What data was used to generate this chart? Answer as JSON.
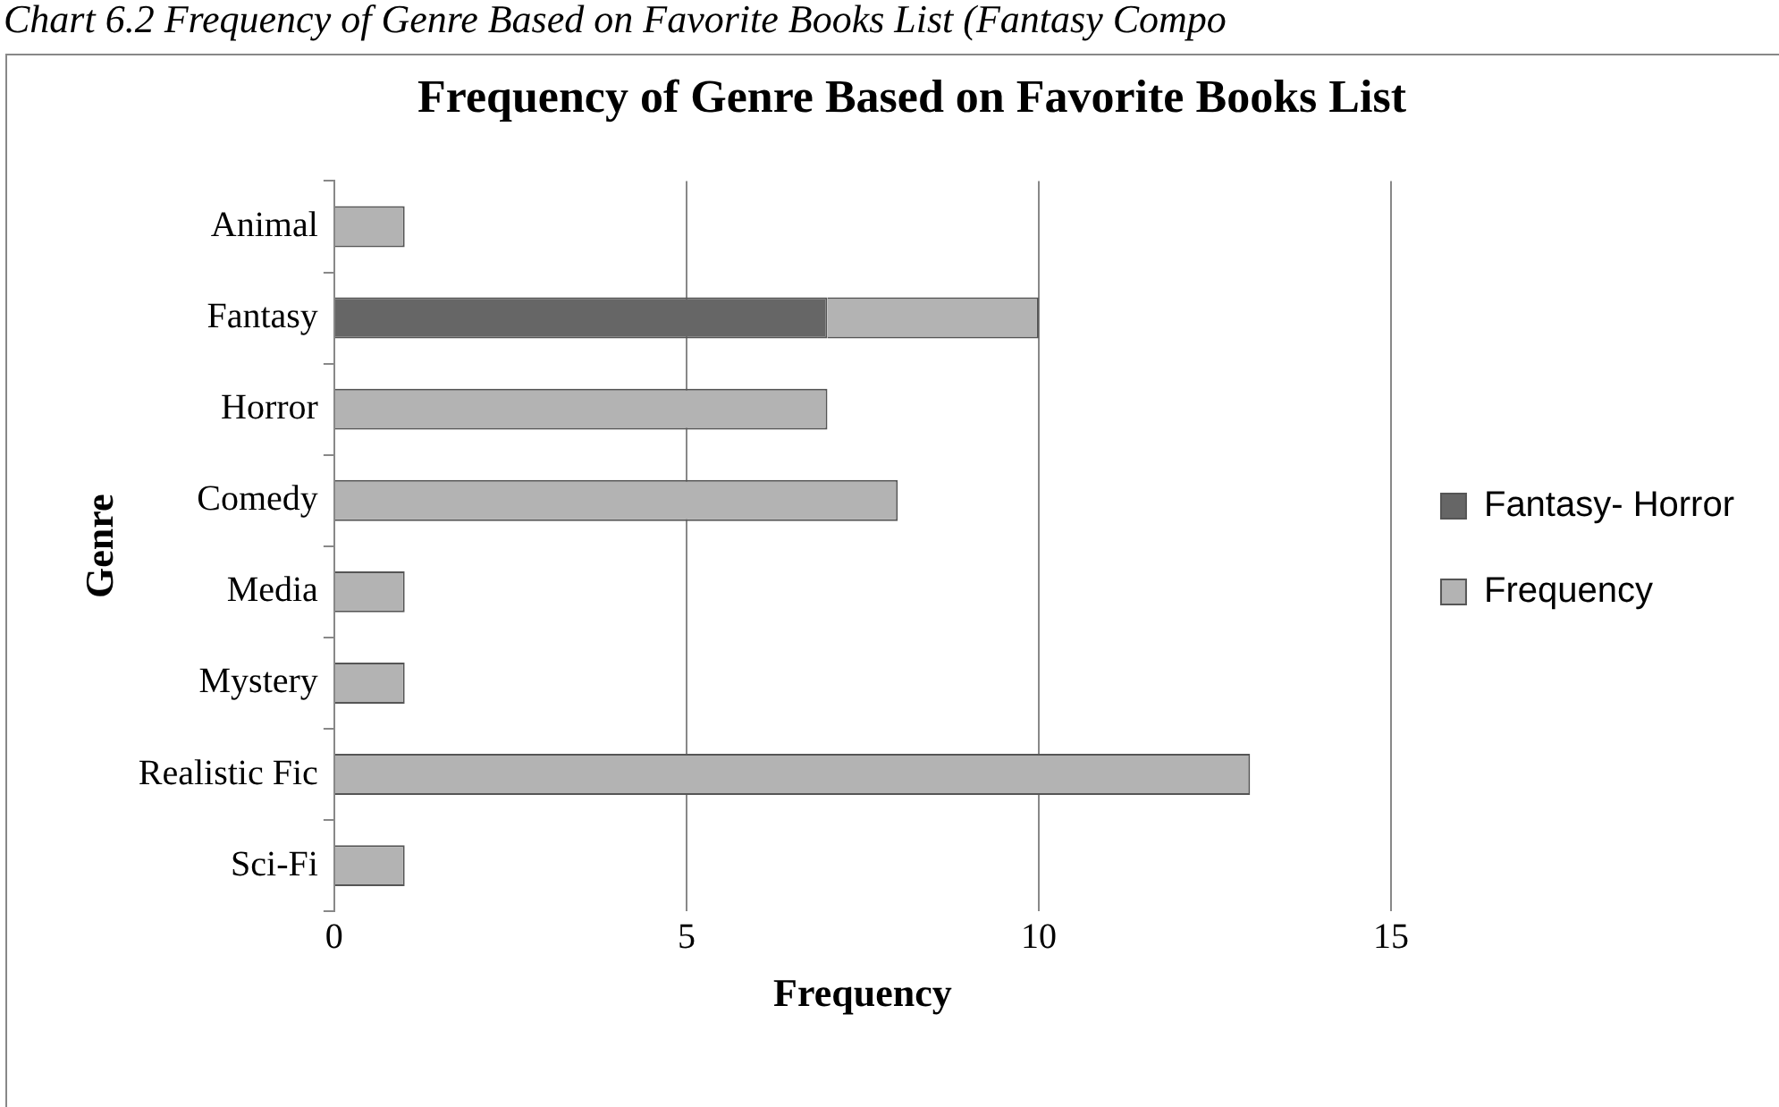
{
  "chart_data": {
    "type": "bar",
    "title": "Frequency of Genre Based on Favorite Books List",
    "orientation": "horizontal",
    "stacked": true,
    "categories": [
      "Animal",
      "Fantasy",
      "Horror",
      "Comedy",
      "Media",
      "Mystery",
      "Realistic Fic",
      "Sci-Fi"
    ],
    "series": [
      {
        "name": "Fantasy- Horror",
        "color": "#666666",
        "values": [
          null,
          7,
          null,
          null,
          null,
          null,
          null,
          null
        ]
      },
      {
        "name": "Frequency",
        "color": "#b3b3b3",
        "values": [
          1,
          3,
          7,
          8,
          1,
          1,
          13,
          1
        ]
      }
    ],
    "xlabel": "Frequency",
    "ylabel": "Genre",
    "xlim": [
      0,
      15
    ],
    "xticks": [
      0,
      5,
      10,
      15
    ],
    "grid": "x",
    "legend": "right",
    "annotations": [
      "Chart 6.2 Frequency of Genre Based on Favorite Books List (Fantasy Compo"
    ]
  }
}
